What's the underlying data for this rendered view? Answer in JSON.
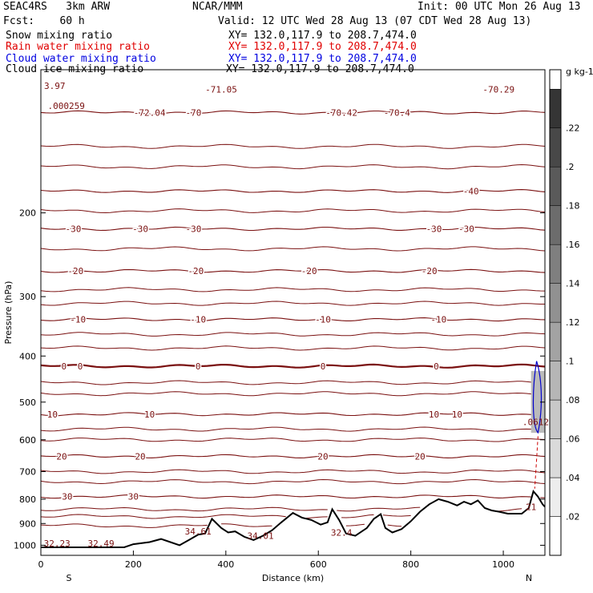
{
  "header": {
    "model": "SEAC4RS   3km ARW",
    "org": "NCAR/MMM",
    "init": "Init: 00 UTC Mon 26 Aug 13",
    "fcst": "Fcst:    60 h",
    "valid": "Valid: 12 UTC Wed 28 Aug 13 (07 CDT Wed 28 Aug 13)"
  },
  "fields": [
    {
      "name": "Snow mixing ratio",
      "xy": "XY= 132.0,117.9 to 208.7,474.0",
      "color": "#000000"
    },
    {
      "name": "Rain water mixing ratio",
      "xy": "XY= 132.0,117.9 to 208.7,474.0",
      "color": "#e00000"
    },
    {
      "name": "Cloud water mixing ratio",
      "xy": "XY= 132.0,117.9 to 208.7,474.0",
      "color": "#0000e0"
    },
    {
      "name": "Cloud ice mixing ratio",
      "xy": "XY= 132.0,117.9 to 208.7,474.0",
      "color": "#000000"
    }
  ],
  "colors": {
    "temperature_contour": "#7a1010",
    "terrain": "#000000",
    "cloud_water": "#0000cc",
    "rain": "#cc0000"
  },
  "chart_data": {
    "type": "cross-section",
    "xlabel": "Distance (km)",
    "ylabel": "Pressure (hPa)",
    "x_ticks": [
      0,
      200,
      400,
      600,
      800,
      1000
    ],
    "y_ticks": [
      200,
      300,
      400,
      500,
      600,
      700,
      800,
      900,
      1000
    ],
    "xlim": [
      0,
      1090
    ],
    "ylim": [
      100,
      1050
    ],
    "y_scale": "log-pressure",
    "end_labels": {
      "left": "S",
      "right": "N"
    },
    "temperature_contours": [
      {
        "p": 123,
        "labels": [
          {
            "x": 235,
            "t": "-72.04"
          },
          {
            "x": 330,
            "t": "-70"
          },
          {
            "x": 650,
            "t": "-70.42"
          },
          {
            "x": 770,
            "t": "-70.4"
          }
        ]
      },
      {
        "p": 180,
        "labels": [
          {
            "x": 930,
            "t": "-40"
          }
        ]
      },
      {
        "p": 216,
        "labels": [
          {
            "x": 70,
            "t": "-30"
          },
          {
            "x": 215,
            "t": "-30"
          },
          {
            "x": 330,
            "t": "-30"
          },
          {
            "x": 850,
            "t": "-30"
          },
          {
            "x": 920,
            "t": "-30"
          }
        ]
      },
      {
        "p": 265,
        "labels": [
          {
            "x": 75,
            "t": "-20"
          },
          {
            "x": 335,
            "t": "-20"
          },
          {
            "x": 580,
            "t": "-20"
          },
          {
            "x": 840,
            "t": "-20"
          }
        ]
      },
      {
        "p": 335,
        "labels": [
          {
            "x": 80,
            "t": "-10"
          },
          {
            "x": 340,
            "t": "-10"
          },
          {
            "x": 610,
            "t": "-10"
          },
          {
            "x": 860,
            "t": "-10"
          }
        ]
      },
      {
        "p": 420,
        "labels": [
          {
            "x": 50,
            "t": "0"
          },
          {
            "x": 85,
            "t": "0"
          },
          {
            "x": 340,
            "t": "0"
          },
          {
            "x": 610,
            "t": "0"
          },
          {
            "x": 855,
            "t": "0"
          }
        ]
      },
      {
        "p": 530,
        "labels": [
          {
            "x": 25,
            "t": "10"
          },
          {
            "x": 235,
            "t": "10"
          },
          {
            "x": 850,
            "t": "10"
          },
          {
            "x": 900,
            "t": "10"
          }
        ]
      },
      {
        "p": 650,
        "labels": [
          {
            "x": 45,
            "t": "20"
          },
          {
            "x": 215,
            "t": "20"
          },
          {
            "x": 610,
            "t": "20"
          },
          {
            "x": 820,
            "t": "20"
          }
        ]
      },
      {
        "p": 790,
        "labels": [
          {
            "x": 57,
            "t": "30"
          },
          {
            "x": 200,
            "t": "30"
          }
        ]
      }
    ],
    "extrema_labels": [
      {
        "x": 30,
        "p": 108,
        "t": "3.97"
      },
      {
        "x": 55,
        "p": 119,
        "t": ".000259"
      },
      {
        "x": 390,
        "p": 110,
        "t": "-71.05"
      },
      {
        "x": 990,
        "p": 110,
        "t": "-70.29"
      },
      {
        "x": 35,
        "p": 990,
        "t": "32.23"
      },
      {
        "x": 130,
        "p": 990,
        "t": "32.49"
      },
      {
        "x": 340,
        "p": 935,
        "t": "34.61"
      },
      {
        "x": 475,
        "p": 955,
        "t": "34.01"
      },
      {
        "x": 650,
        "p": 940,
        "t": "32.4"
      },
      {
        "x": 1060,
        "p": 830,
        "t": "21"
      },
      {
        "x": 1070,
        "p": 550,
        "t": ".0612"
      }
    ],
    "terrain": [
      [
        0,
        1010
      ],
      [
        180,
        1010
      ],
      [
        200,
        995
      ],
      [
        235,
        985
      ],
      [
        260,
        970
      ],
      [
        280,
        985
      ],
      [
        300,
        1000
      ],
      [
        320,
        975
      ],
      [
        340,
        950
      ],
      [
        355,
        945
      ],
      [
        370,
        880
      ],
      [
        390,
        920
      ],
      [
        405,
        940
      ],
      [
        420,
        935
      ],
      [
        440,
        960
      ],
      [
        460,
        975
      ],
      [
        480,
        955
      ],
      [
        500,
        930
      ],
      [
        520,
        895
      ],
      [
        545,
        855
      ],
      [
        565,
        875
      ],
      [
        585,
        885
      ],
      [
        605,
        905
      ],
      [
        620,
        895
      ],
      [
        630,
        840
      ],
      [
        645,
        885
      ],
      [
        660,
        945
      ],
      [
        680,
        955
      ],
      [
        705,
        920
      ],
      [
        720,
        880
      ],
      [
        735,
        860
      ],
      [
        745,
        920
      ],
      [
        760,
        940
      ],
      [
        780,
        925
      ],
      [
        800,
        890
      ],
      [
        820,
        850
      ],
      [
        840,
        820
      ],
      [
        860,
        800
      ],
      [
        880,
        810
      ],
      [
        900,
        825
      ],
      [
        915,
        810
      ],
      [
        930,
        820
      ],
      [
        945,
        805
      ],
      [
        960,
        835
      ],
      [
        975,
        845
      ],
      [
        990,
        850
      ],
      [
        1010,
        858
      ],
      [
        1040,
        858
      ],
      [
        1055,
        835
      ],
      [
        1065,
        770
      ],
      [
        1075,
        790
      ],
      [
        1085,
        820
      ],
      [
        1090,
        830
      ]
    ],
    "colorbar": {
      "unit": "g kg-1",
      "ticks": [
        ".02",
        ".04",
        ".06",
        ".08",
        ".1",
        ".12",
        ".14",
        ".16",
        ".18",
        ".2",
        ".22"
      ]
    }
  }
}
